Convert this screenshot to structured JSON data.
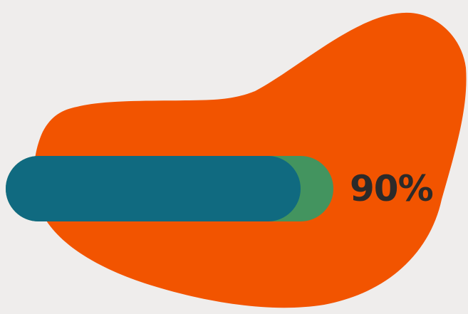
{
  "colors": {
    "background": "#efedec",
    "blob": "#f25400",
    "track": "#43945f",
    "fill": "#106a80",
    "text": "#2c2a29"
  },
  "progress": {
    "label": "90%",
    "track_fraction": 0.9
  }
}
